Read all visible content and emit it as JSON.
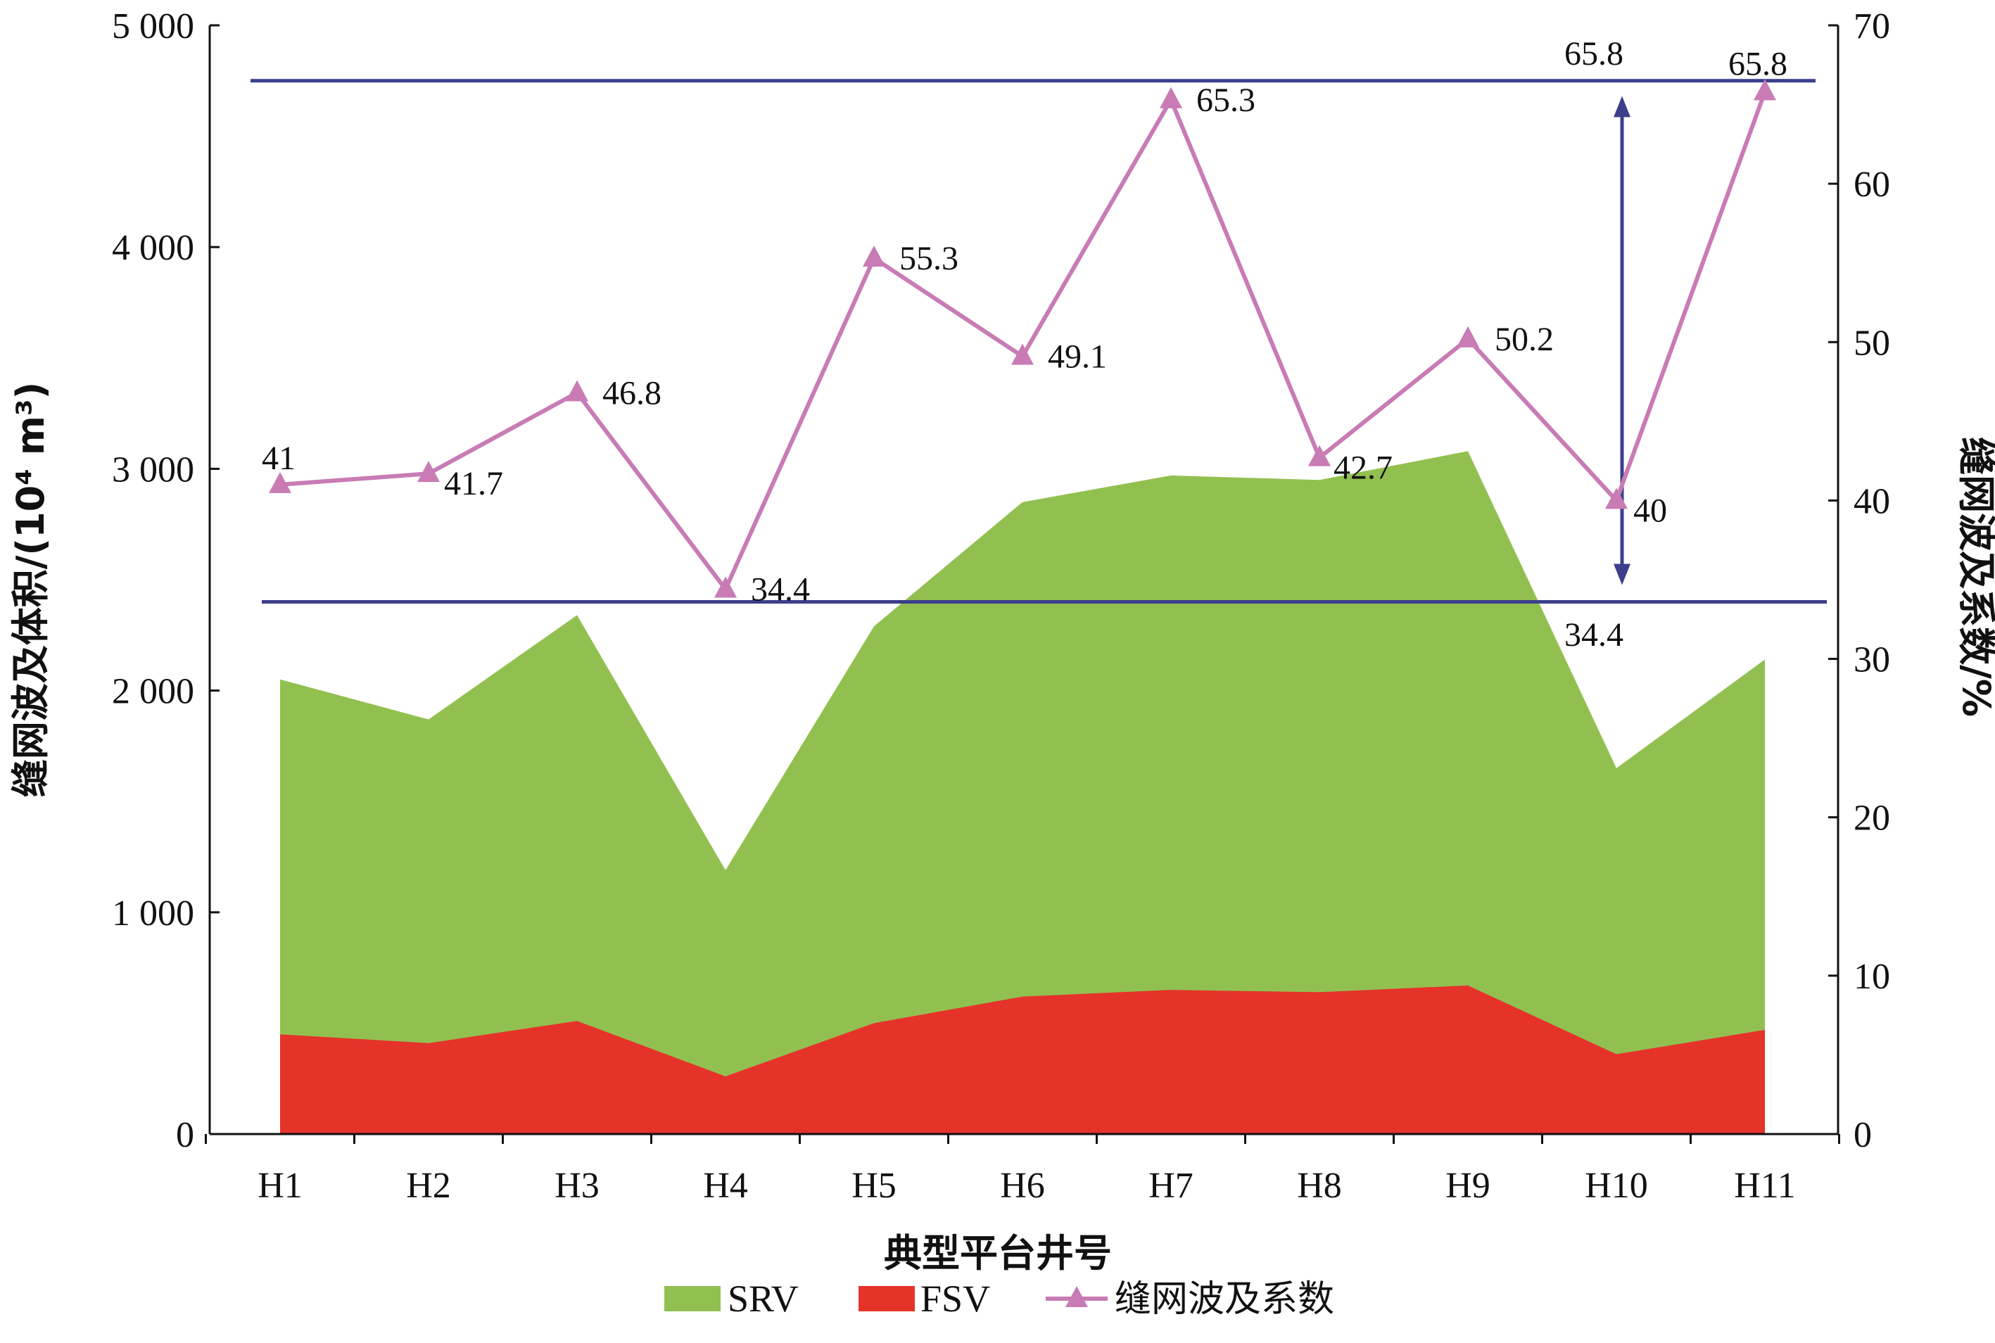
{
  "chart_data": {
    "type": "area",
    "categories": [
      "H1",
      "H2",
      "H3",
      "H4",
      "H5",
      "H6",
      "H7",
      "H8",
      "H9",
      "H10",
      "H11"
    ],
    "xlabel": "典型平台井号",
    "ylabel_left": "缝网波及体积/(10⁴ m³)",
    "ylabel_right": "缝网波及系数/%",
    "ylim_left": [
      0,
      5000
    ],
    "ylim_right": [
      0,
      70
    ],
    "yticks_left": [
      "0",
      "1 000",
      "2 000",
      "3 000",
      "4 000",
      "5 000"
    ],
    "yticks_right": [
      "0",
      "10",
      "20",
      "30",
      "40",
      "50",
      "60",
      "70"
    ],
    "series": [
      {
        "name": "SRV",
        "axis": "left",
        "type": "area",
        "color": "#92c050",
        "values": [
          2050,
          1870,
          2340,
          1190,
          2290,
          2850,
          2970,
          2950,
          3080,
          1650,
          2140
        ]
      },
      {
        "name": "FSV",
        "axis": "left",
        "type": "area",
        "color": "#e5332a",
        "values": [
          450,
          410,
          510,
          260,
          500,
          620,
          650,
          640,
          670,
          360,
          470
        ]
      },
      {
        "name": "缝网波及系数",
        "axis": "right",
        "type": "line",
        "color": "#c87bb5",
        "marker": "triangle",
        "values": [
          41,
          41.7,
          46.8,
          34.4,
          55.3,
          49.1,
          65.3,
          42.7,
          50.2,
          40,
          65.8
        ],
        "labels": [
          "41",
          "41.7",
          "46.8",
          "34.4",
          "55.3",
          "49.1",
          "65.3",
          "42.7",
          "50.2",
          "40",
          "65.8"
        ]
      }
    ],
    "reference_lines": [
      {
        "axis": "right",
        "value": 66.5,
        "color": "#3b3f8c"
      },
      {
        "axis": "right",
        "value": 33.6,
        "color": "#3b3f8c"
      }
    ],
    "range_arrow": {
      "category": "H10",
      "from": 34.4,
      "to": 65.8,
      "color": "#3b3f8c"
    },
    "annotations": [
      "65.8",
      "34.4"
    ],
    "legend": {
      "position": "bottom",
      "items": [
        "SRV",
        "FSV",
        "缝网波及系数"
      ]
    },
    "grid": false
  }
}
